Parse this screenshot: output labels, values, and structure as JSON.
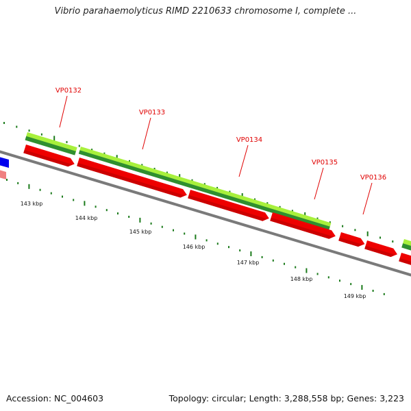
{
  "title": "Vibrio parahaemolyticus RIMD 2210633 chromosome I, complete ...",
  "footer": {
    "accession": "Accession: NC_004603",
    "topology": "Topology: circular; Length: 3,288,558 bp; Genes: 3,223"
  },
  "map": {
    "colors": {
      "backbone": "#7a7a7a",
      "cds": "#ee0000",
      "cds_dark": "#b00000",
      "gene_light": "#a8f03c",
      "gene_dark": "#2f8f2f",
      "tick": "#1a7a1a",
      "label": "#e00000",
      "partial_blue": "#0000ee",
      "partial_pink": "#f08080"
    },
    "ticks": [
      {
        "label": "143 kbp"
      },
      {
        "label": "144 kbp"
      },
      {
        "label": "145 kbp"
      },
      {
        "label": "146 kbp"
      },
      {
        "label": "147 kbp"
      },
      {
        "label": "148 kbp"
      },
      {
        "label": "149 kbp"
      }
    ],
    "genes": [
      {
        "label": "VP0132"
      },
      {
        "label": "VP0133"
      },
      {
        "label": "VP0134"
      },
      {
        "label": "VP0135"
      },
      {
        "label": "VP0136"
      }
    ]
  }
}
